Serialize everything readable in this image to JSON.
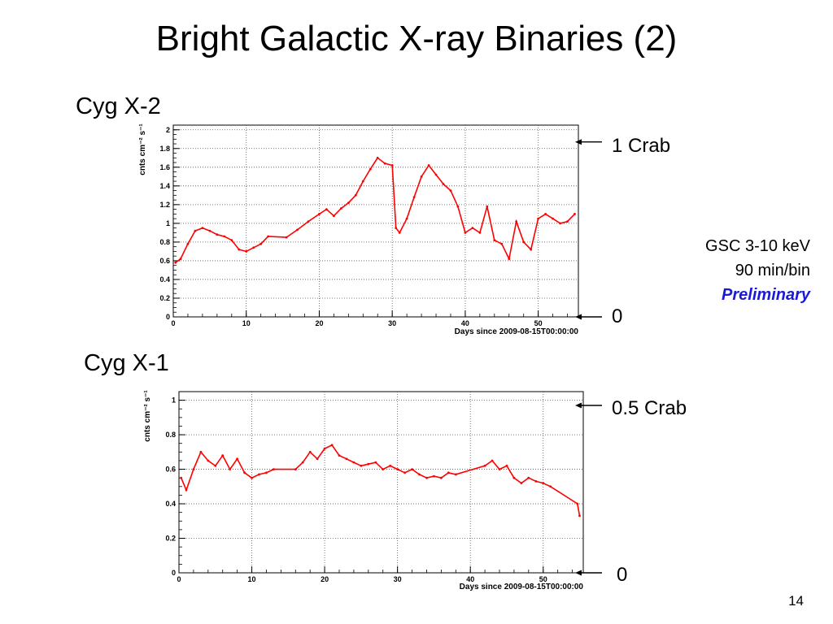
{
  "slide": {
    "title": "Bright Galactic X-ray Binaries (2)",
    "page_number": "14"
  },
  "info": {
    "line1": "GSC 3-10 keV",
    "line2": "90 min/bin",
    "line3": "Preliminary"
  },
  "colors": {
    "data": "#ff0000",
    "preliminary": "#1a1ad6",
    "grid": "#555555"
  },
  "chart_data": [
    {
      "type": "line",
      "id": "cygx2",
      "panel_label": "Cyg X-2",
      "xlabel": "Days since 2009-08-15T00:00:00",
      "ylabel": "cnts cm⁻² s⁻¹",
      "xlim": [
        0,
        55.5
      ],
      "ylim": [
        0,
        2.05
      ],
      "xticks": [
        0,
        10,
        20,
        30,
        40,
        50
      ],
      "xtick_labels": [
        "0",
        "10",
        "20",
        "30",
        "40",
        "50"
      ],
      "yticks": [
        0,
        0.2,
        0.4,
        0.6,
        0.8,
        1,
        1.2,
        1.4,
        1.6,
        1.8,
        2
      ],
      "ytick_labels": [
        "0",
        "0.2",
        "0.4",
        "0.6",
        "0.8",
        "1",
        "1.2",
        "1.4",
        "1.6",
        "1.8",
        "2"
      ],
      "grid": true,
      "markers": [
        {
          "label": "1 Crab",
          "y": 1.87
        },
        {
          "label": "0",
          "y": 0
        }
      ],
      "series": [
        {
          "x": [
            0.3,
            1.0,
            2.0,
            3.0,
            4.0,
            5.0,
            6.0,
            7.0,
            8.0,
            9.0,
            10.0,
            11.0,
            12.0,
            13.0,
            15.5,
            17.0,
            18.5,
            20.0,
            21.0,
            22.0,
            23.0,
            24.0,
            25.0,
            26.0,
            27.0,
            28.0,
            29.0,
            30.0,
            30.5,
            31.0,
            32.0,
            33.0,
            34.0,
            35.0,
            36.0,
            37.0,
            38.0,
            39.0,
            40.0,
            41.0,
            42.0,
            43.0,
            44.0,
            45.0,
            46.0,
            47.0,
            48.0,
            49.0,
            50.0,
            51.0,
            52.0,
            53.0,
            54.0,
            55.0
          ],
          "y": [
            0.58,
            0.62,
            0.78,
            0.92,
            0.95,
            0.92,
            0.88,
            0.86,
            0.82,
            0.72,
            0.7,
            0.74,
            0.78,
            0.86,
            0.85,
            0.93,
            1.02,
            1.1,
            1.15,
            1.08,
            1.16,
            1.22,
            1.3,
            1.45,
            1.58,
            1.7,
            1.64,
            1.62,
            0.95,
            0.9,
            1.05,
            1.28,
            1.5,
            1.62,
            1.52,
            1.42,
            1.35,
            1.18,
            0.9,
            0.95,
            0.9,
            1.18,
            0.82,
            0.78,
            0.62,
            1.02,
            0.8,
            0.72,
            1.05,
            1.1,
            1.05,
            1.0,
            1.02,
            1.1
          ]
        }
      ]
    },
    {
      "type": "line",
      "id": "cygx1",
      "panel_label": "Cyg X-1",
      "xlabel": "Days since 2009-08-15T00:00:00",
      "ylabel": "cnts cm⁻² s⁻¹",
      "xlim": [
        0,
        55.5
      ],
      "ylim": [
        0,
        1.05
      ],
      "xticks": [
        0,
        10,
        20,
        30,
        40,
        50
      ],
      "xtick_labels": [
        "0",
        "10",
        "20",
        "30",
        "40",
        "50"
      ],
      "yticks": [
        0,
        0.2,
        0.4,
        0.6,
        0.8,
        1
      ],
      "ytick_labels": [
        "0",
        "0.2",
        "0.4",
        "0.6",
        "0.8",
        "1"
      ],
      "grid": true,
      "markers": [
        {
          "label": "0.5 Crab",
          "y": 0.97
        },
        {
          "label": "0",
          "y": 0
        }
      ],
      "series": [
        {
          "x": [
            0.3,
            1.0,
            2.0,
            3.0,
            4.0,
            5.0,
            6.0,
            7.0,
            8.0,
            9.0,
            10.0,
            11.0,
            12.0,
            13.0,
            16.0,
            17.0,
            18.0,
            19.0,
            20.0,
            21.0,
            22.0,
            23.0,
            24.0,
            25.0,
            26.0,
            27.0,
            28.0,
            29.0,
            30.0,
            31.0,
            32.0,
            33.0,
            34.0,
            35.0,
            36.0,
            37.0,
            38.0,
            42.0,
            43.0,
            44.0,
            45.0,
            46.0,
            47.0,
            48.0,
            49.0,
            50.0,
            51.0,
            54.7,
            55.0
          ],
          "y": [
            0.55,
            0.48,
            0.6,
            0.7,
            0.65,
            0.62,
            0.68,
            0.6,
            0.66,
            0.58,
            0.55,
            0.57,
            0.58,
            0.6,
            0.6,
            0.64,
            0.7,
            0.66,
            0.72,
            0.74,
            0.68,
            0.66,
            0.64,
            0.62,
            0.63,
            0.64,
            0.6,
            0.62,
            0.6,
            0.58,
            0.6,
            0.57,
            0.55,
            0.56,
            0.55,
            0.58,
            0.57,
            0.62,
            0.65,
            0.6,
            0.62,
            0.55,
            0.52,
            0.55,
            0.53,
            0.52,
            0.5,
            0.4,
            0.33
          ]
        }
      ]
    }
  ]
}
